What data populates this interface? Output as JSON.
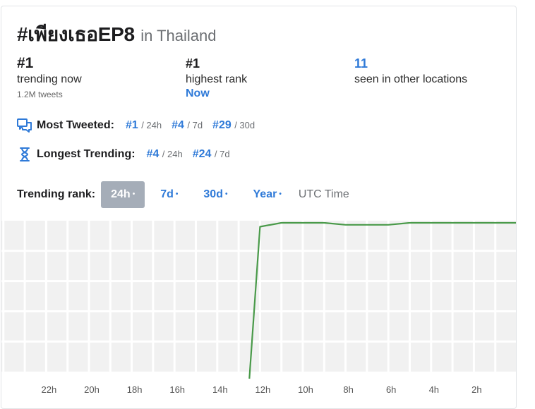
{
  "header": {
    "hashtag": "#เพียงเธอEP8",
    "location": "in Thailand"
  },
  "stats": {
    "trending_now": {
      "value": "#1",
      "label": "trending now",
      "sub": "1.2M tweets"
    },
    "highest_rank": {
      "value": "#1",
      "label": "highest rank",
      "when": "Now"
    },
    "other_locations": {
      "value": "11",
      "label": "seen in other locations"
    }
  },
  "most_tweeted": {
    "label": "Most Tweeted:",
    "icon": "chat-bubbles-icon",
    "ranks": [
      {
        "rank": "#1",
        "period": "/ 24h"
      },
      {
        "rank": "#4",
        "period": "/ 7d"
      },
      {
        "rank": "#29",
        "period": "/ 30d"
      }
    ]
  },
  "longest_trending": {
    "label": "Longest Trending:",
    "icon": "hourglass-icon",
    "ranks": [
      {
        "rank": "#4",
        "period": "/ 24h"
      },
      {
        "rank": "#24",
        "period": "/ 7d"
      }
    ]
  },
  "trending_rank": {
    "label": "Trending rank:",
    "tabs": [
      {
        "label": "24h",
        "active": true
      },
      {
        "label": "7d",
        "active": false
      },
      {
        "label": "30d",
        "active": false
      },
      {
        "label": "Year",
        "active": false
      }
    ],
    "dot": "•",
    "timezone": "UTC Time"
  },
  "colors": {
    "accent": "#2f7ad8",
    "line": "#4a9a4a",
    "grid_bg": "#f1f1f1",
    "active_tab": "#a5adb8"
  },
  "chart_data": {
    "type": "line",
    "x_tick_labels": [
      "22h",
      "20h",
      "18h",
      "16h",
      "14h",
      "12h",
      "10h",
      "8h",
      "6h",
      "4h",
      "2h"
    ],
    "x_hours_ago": [
      24,
      23,
      22,
      21,
      20,
      19,
      18,
      17,
      16,
      15,
      14,
      13,
      12.5,
      12,
      11,
      10,
      9,
      8,
      7,
      6,
      5,
      4,
      3,
      2,
      1,
      0
    ],
    "y_rank": [
      null,
      null,
      null,
      null,
      null,
      null,
      null,
      null,
      null,
      null,
      null,
      null,
      50,
      2,
      1,
      1,
      1,
      1.5,
      1.5,
      1.5,
      1,
      1,
      1,
      1,
      1,
      1
    ],
    "y_reversed": true,
    "grid": true
  }
}
